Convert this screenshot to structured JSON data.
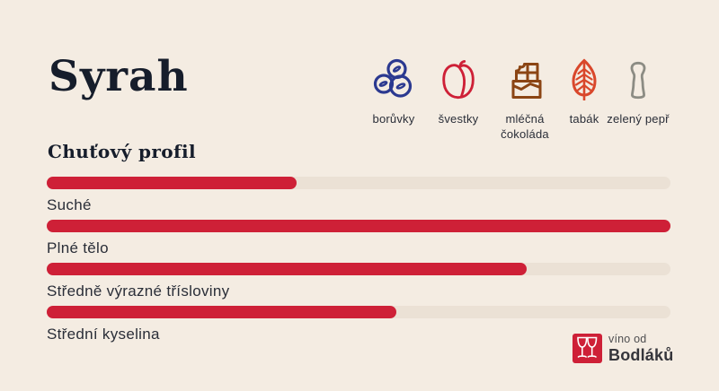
{
  "theme": {
    "bg": "#F4ECE2",
    "ink": "#161D2B",
    "text": "#2A2E38",
    "bar": "#CE2037",
    "track": "#EBE1D5",
    "icon-blue": "#2B3990",
    "icon-red": "#CE2037",
    "icon-brown": "#8B4514",
    "icon-leaf": "#D9472B",
    "icon-gray": "#8C8C84",
    "logo-sub": "#4E4E50",
    "logo-name": "#35353B"
  },
  "title": "Syrah",
  "aromas": {
    "items": [
      {
        "label": "borůvky",
        "icon": "blueberries-icon",
        "color": "#2B3990"
      },
      {
        "label": "švestky",
        "icon": "plum-icon",
        "color": "#CE2037"
      },
      {
        "label": "mléčná čokoláda",
        "icon": "chocolate-bar-icon",
        "color": "#8B4514"
      },
      {
        "label": "tabák",
        "icon": "tobacco-leaf-icon",
        "color": "#D9472B"
      },
      {
        "label": "zelený pepř",
        "icon": "pepper-mill-icon",
        "color": "#8C8C84"
      }
    ]
  },
  "chart_data": {
    "type": "bar",
    "orientation": "horizontal",
    "title": "Chuťový profil",
    "categories": [
      "Suché",
      "Plné tělo",
      "Středně výrazné třísloviny",
      "Střední kyselina"
    ],
    "values": [
      40,
      100,
      77,
      56
    ],
    "value_unit": "percent of full track (estimated from bar lengths)",
    "xlim": [
      0,
      100
    ],
    "bar_color": "#CE2037",
    "track_color": "#EBE1D5",
    "grid": false,
    "legend": false
  },
  "logo": {
    "line1": "víno od",
    "line2": "Bodláků"
  }
}
